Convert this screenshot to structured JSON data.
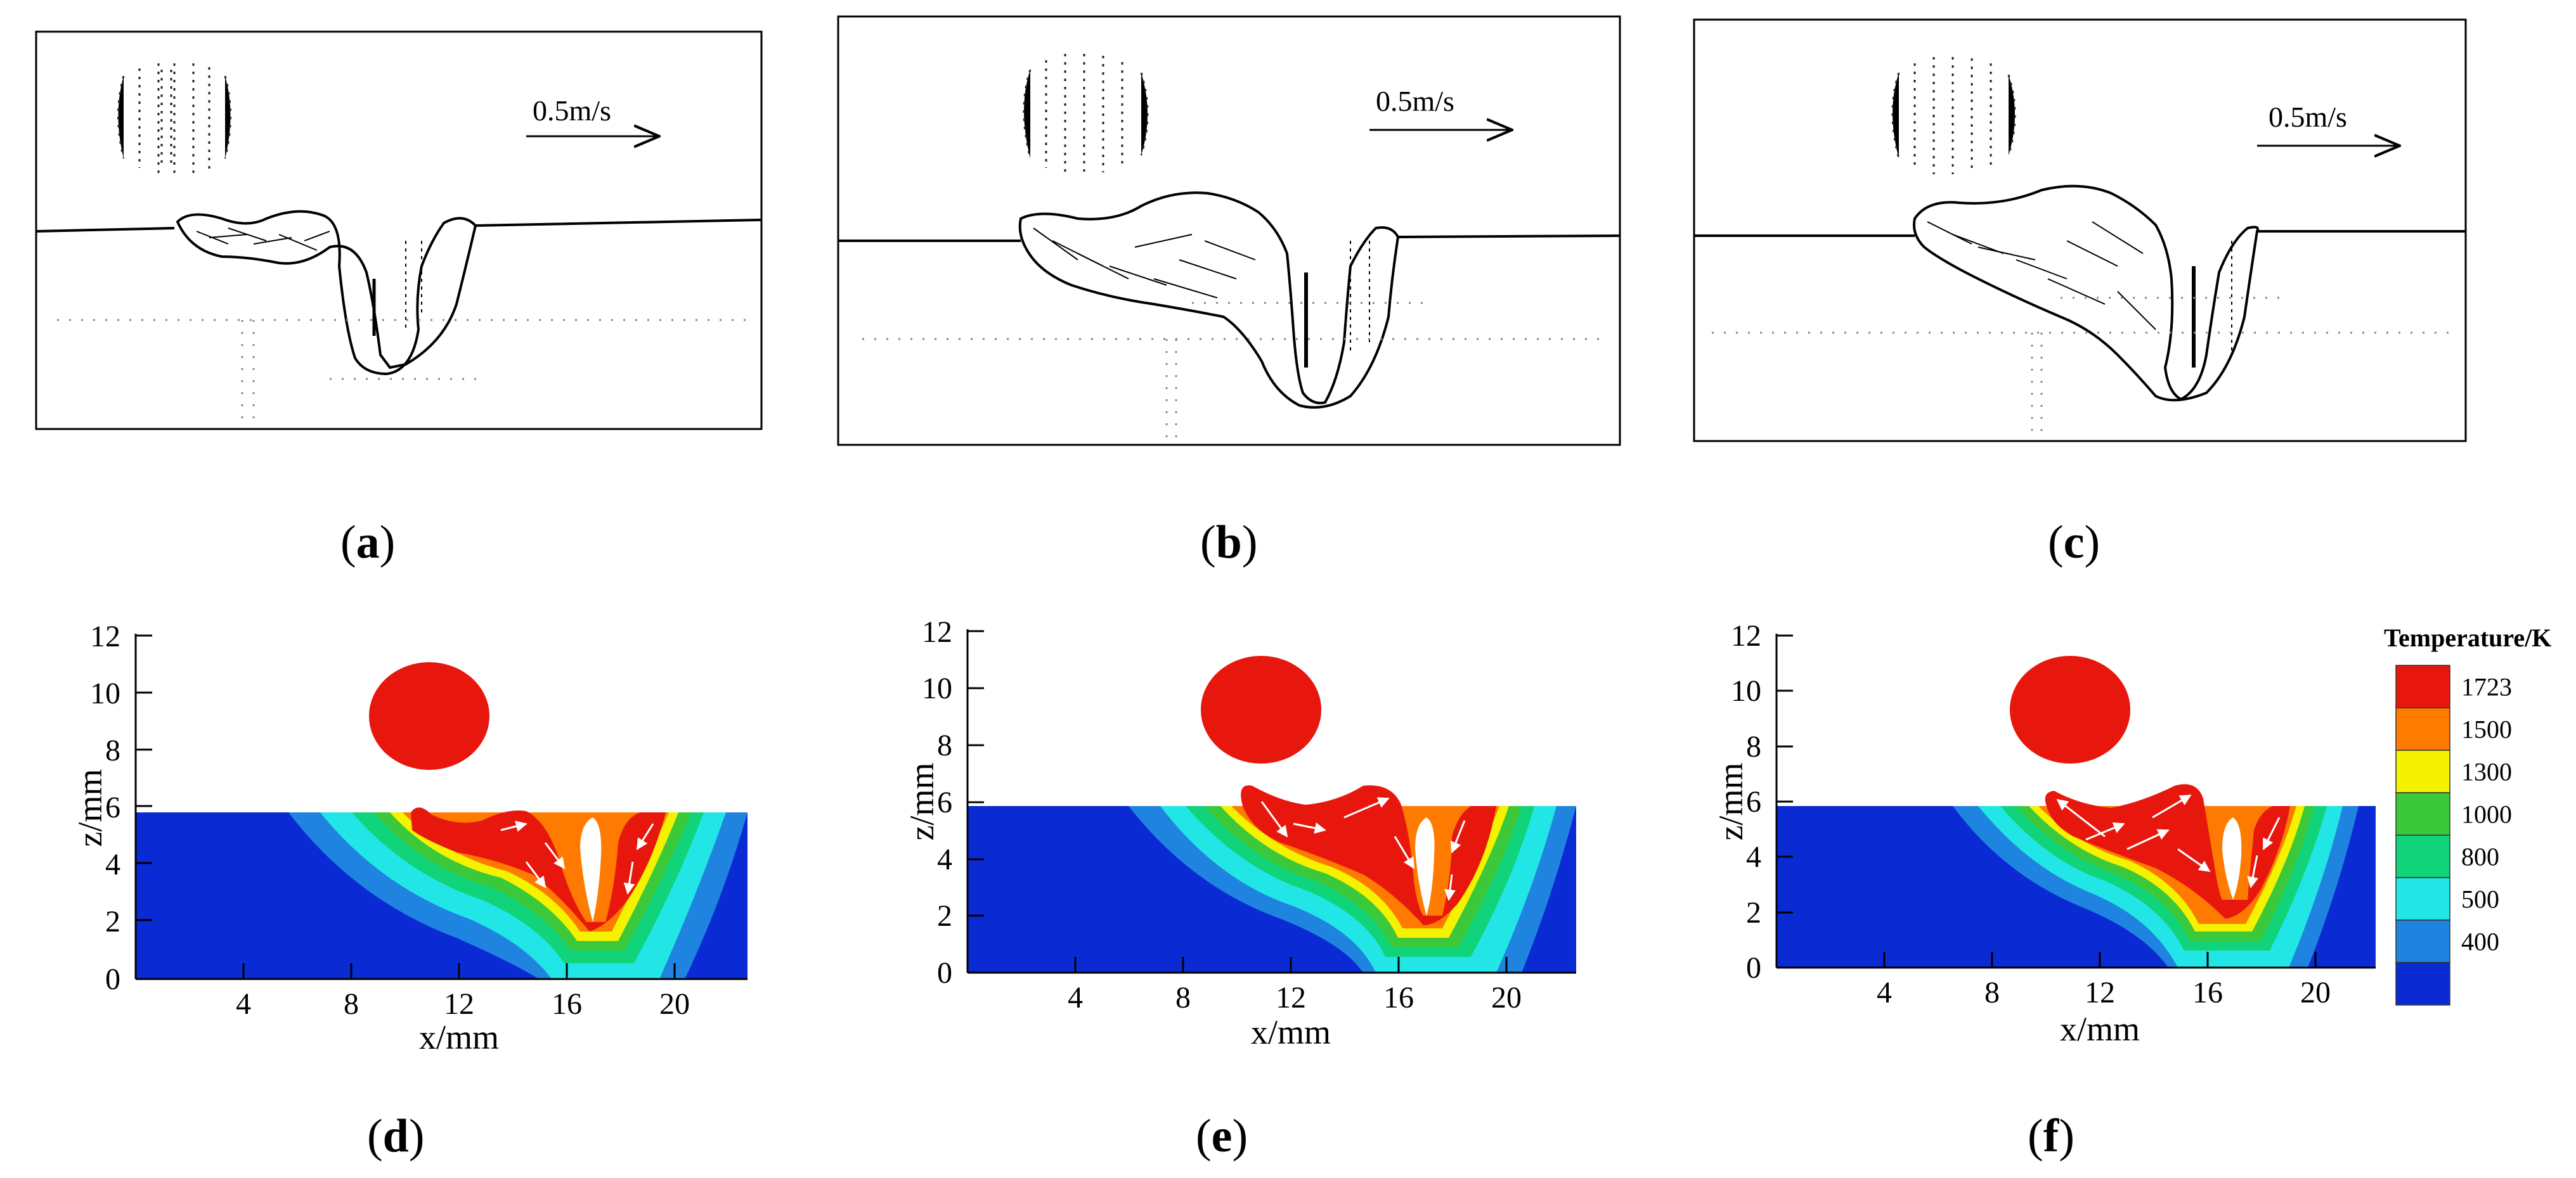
{
  "figure": {
    "captions": [
      "a",
      "b",
      "c",
      "d",
      "e",
      "f"
    ],
    "velocity_panels": {
      "scale_label": "0.5m/s"
    },
    "temperature_panels": {
      "x_label": "x/mm",
      "y_label": "z/mm",
      "x_ticks": [
        "4",
        "8",
        "12",
        "16",
        "20"
      ],
      "y_ticks": [
        "0",
        "2",
        "4",
        "6",
        "8",
        "10",
        "12"
      ]
    },
    "legend": {
      "title": "Temperature/K",
      "levels": [
        {
          "value": "1723",
          "color": "#e8170e"
        },
        {
          "value": "1500",
          "color": "#ff7a00"
        },
        {
          "value": "1300",
          "color": "#f5f200"
        },
        {
          "value": "1000",
          "color": "#3bc93b"
        },
        {
          "value": "800",
          "color": "#10d37a"
        },
        {
          "value": "500",
          "color": "#22e6e6"
        },
        {
          "value": "400",
          "color": "#1f84e0"
        },
        {
          "value": "",
          "color": "#0a2bd4"
        }
      ]
    },
    "colors": {
      "droplet": "#e8170e",
      "base_blue": "#0a2bd4",
      "arrow_in_pool": "#ffffff"
    }
  }
}
